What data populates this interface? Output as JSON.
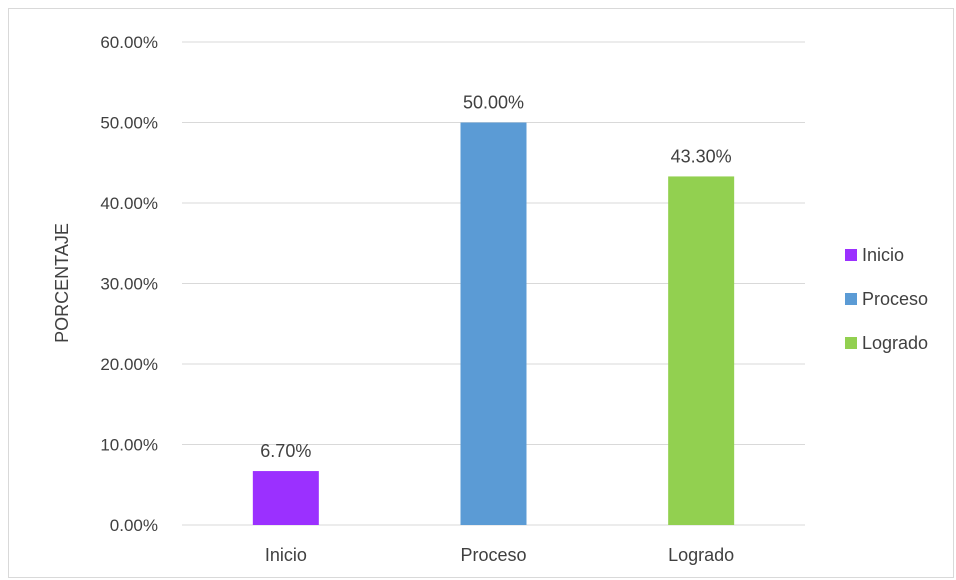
{
  "chart_data": {
    "type": "bar",
    "title": "",
    "xlabel": "",
    "ylabel": "PORCENTAJE",
    "ylim": [
      0,
      60
    ],
    "yticks": [
      "0.00%",
      "10.00%",
      "20.00%",
      "30.00%",
      "40.00%",
      "50.00%",
      "60.00%"
    ],
    "categories": [
      "Inicio",
      "Proceso",
      "Logrado"
    ],
    "values": [
      6.7,
      50.0,
      43.3
    ],
    "value_labels": [
      "6.70%",
      "50.00%",
      "43.30%"
    ],
    "colors": [
      "#9b30ff",
      "#5b9bd5",
      "#92d050"
    ],
    "grid": true,
    "legend": {
      "position": "right",
      "entries": [
        {
          "label": "Inicio",
          "color": "#9b30ff"
        },
        {
          "label": "Proceso",
          "color": "#5b9bd5"
        },
        {
          "label": "Logrado",
          "color": "#92d050"
        }
      ]
    }
  }
}
